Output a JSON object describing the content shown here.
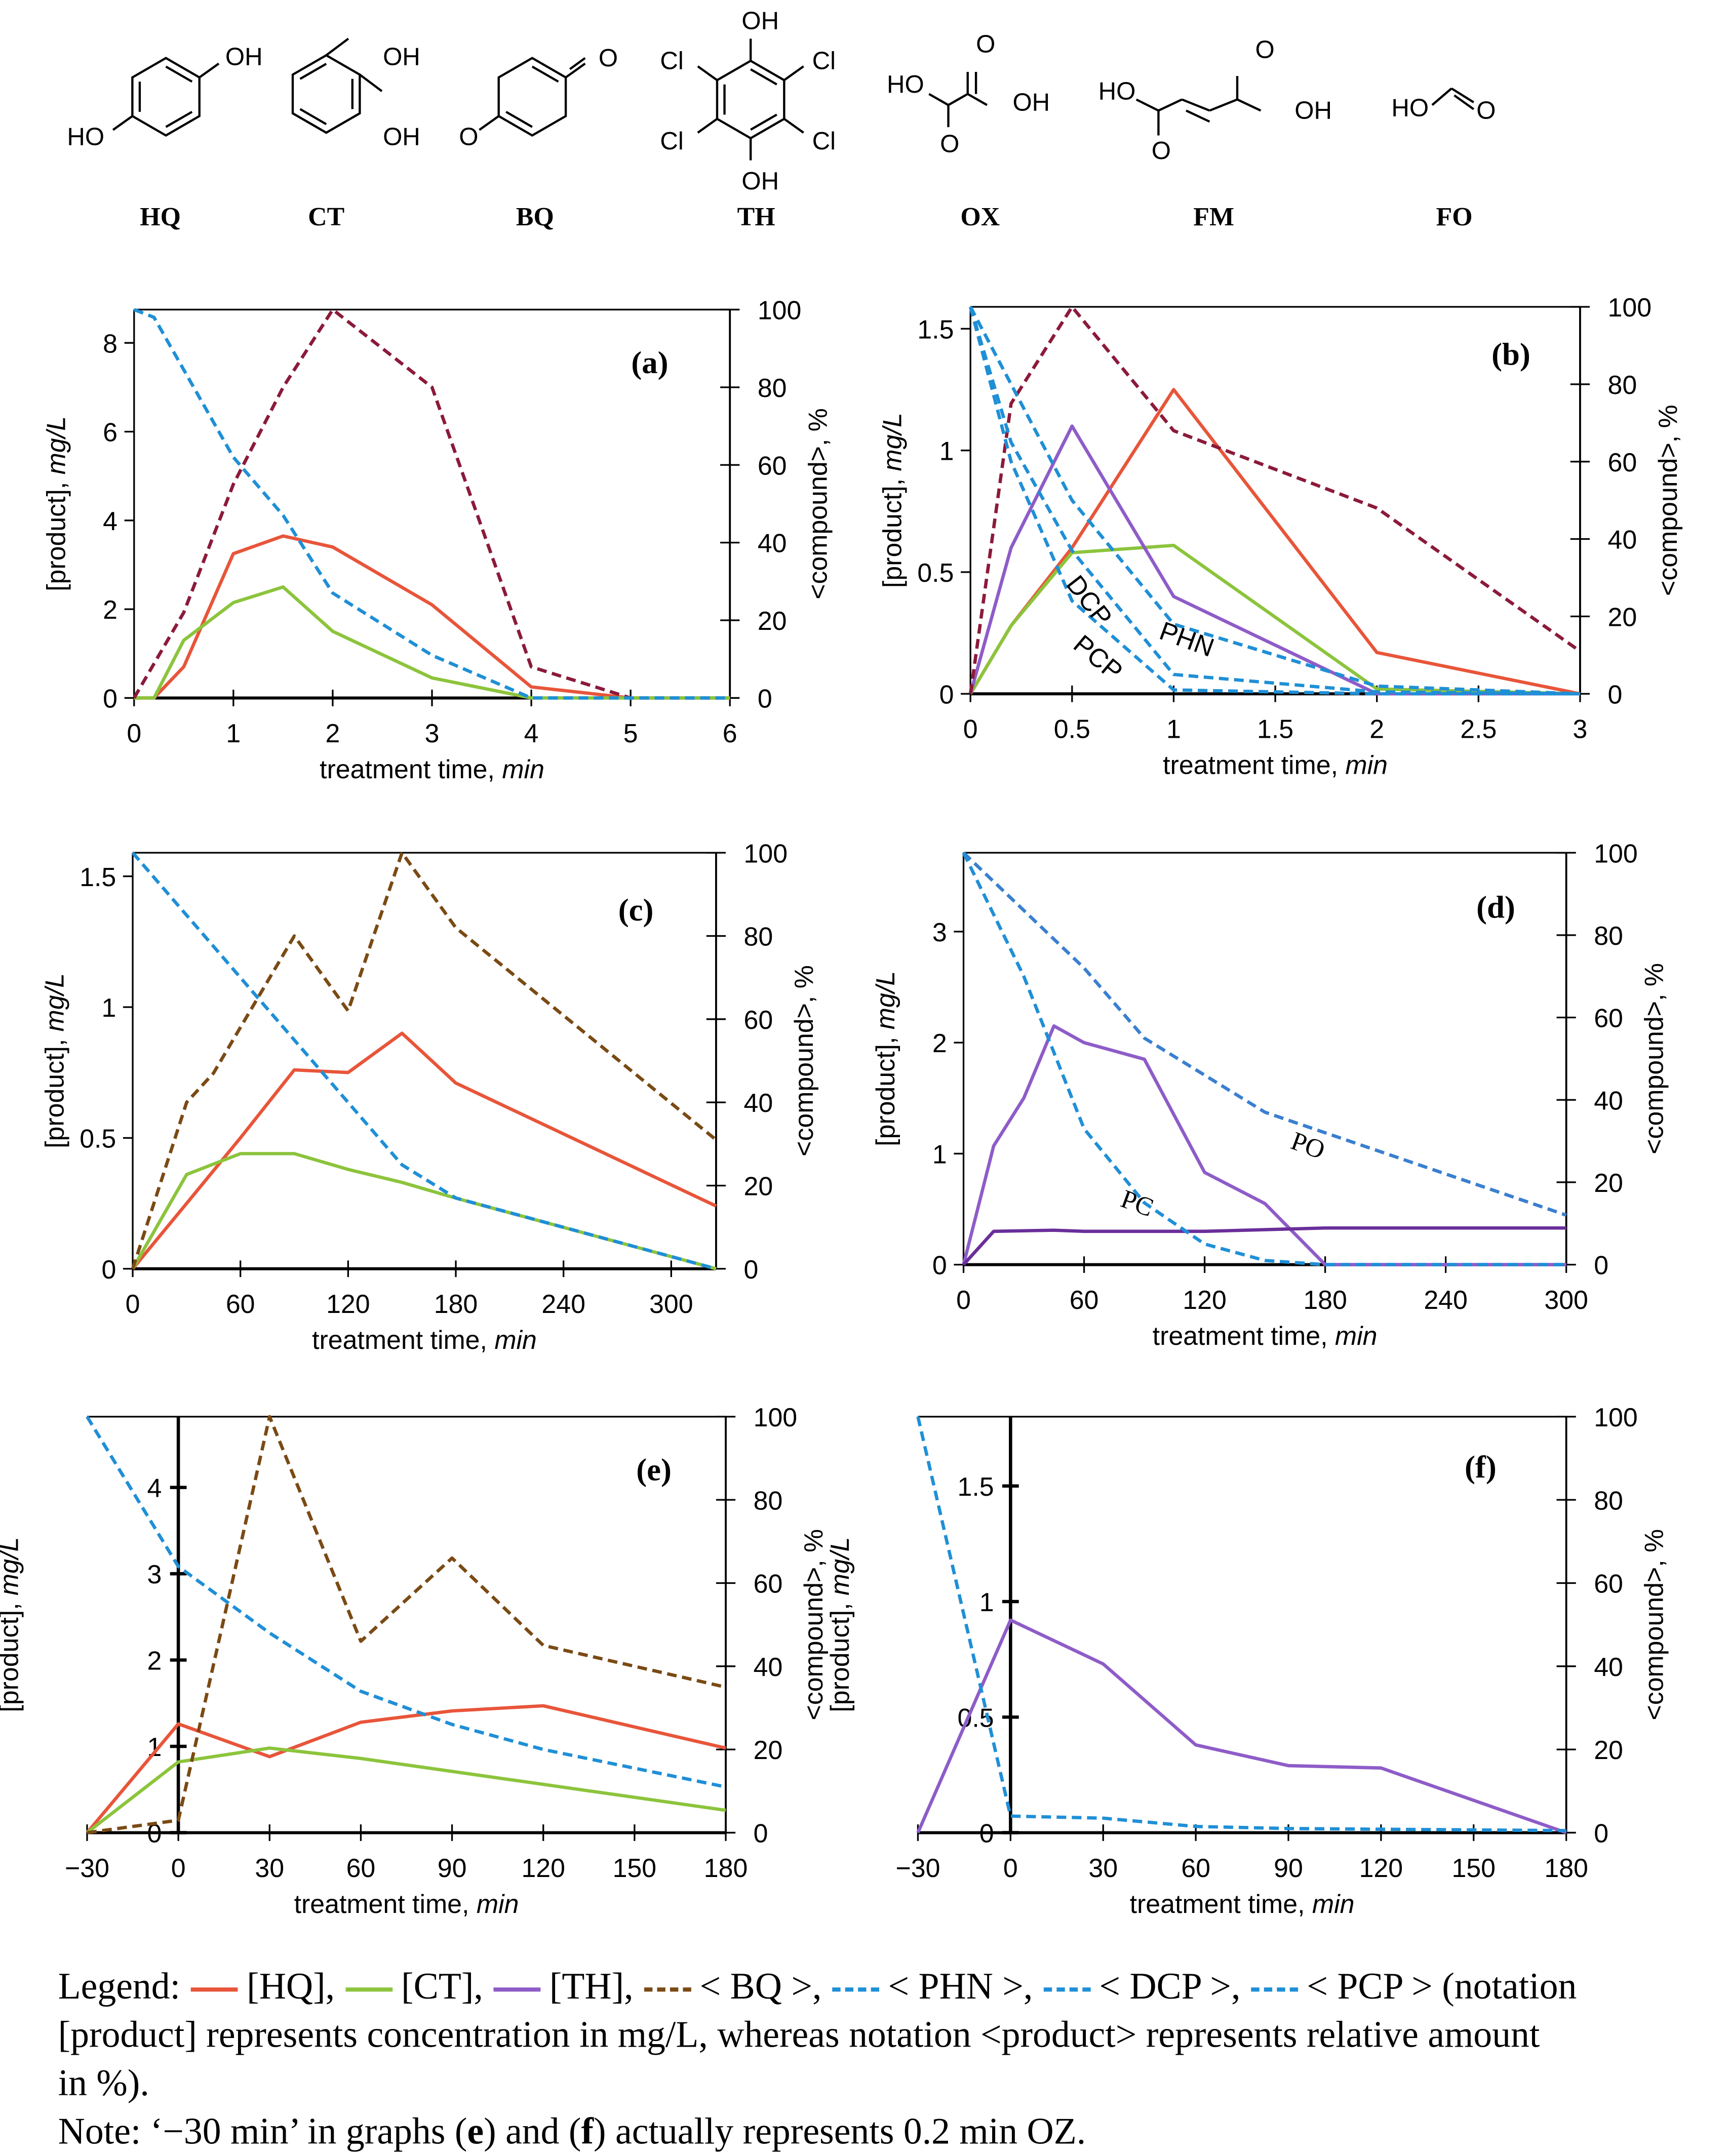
{
  "structures": [
    {
      "id": "HQ",
      "label": "HQ",
      "atoms": [
        "OH",
        "HO"
      ]
    },
    {
      "id": "CT",
      "label": "CT",
      "atoms": [
        "OH",
        "OH"
      ]
    },
    {
      "id": "BQ",
      "label": "BQ",
      "atoms": [
        "O",
        "O"
      ]
    },
    {
      "id": "TH",
      "label": "TH",
      "atoms": [
        "OH",
        "Cl",
        "Cl",
        "Cl",
        "Cl",
        "OH"
      ]
    },
    {
      "id": "OX",
      "label": "OX",
      "atoms": [
        "HO",
        "O",
        "OH",
        "O"
      ]
    },
    {
      "id": "FM",
      "label": "FM",
      "atoms": [
        "HO",
        "O",
        "OH",
        "O"
      ]
    },
    {
      "id": "FO",
      "label": "FO",
      "atoms": [
        "HO",
        "O"
      ]
    }
  ],
  "colors": {
    "HQ": "#e8553a",
    "CT": "#8cc43c",
    "TH": "#8e5cc8",
    "TH2": "#6a2e9a",
    "BQ1": "#8b1a3a",
    "BQ2": "#7a4a14",
    "PHN": "#1f8fd6",
    "DCP": "#1f8fd6",
    "PCP": "#1f8fd6",
    "PO": "#3a7fd0",
    "PC": "#1f8fd6"
  },
  "chart_data": [
    {
      "type": "line",
      "panel": "(a)",
      "xlabel": "treatment time, ",
      "xlabel_unit": "min",
      "ylabel": "[product], ",
      "ylabel_unit": "mg/L",
      "y2label": "<compound>, %",
      "xlim": [
        0,
        6
      ],
      "ylim": [
        0,
        8.75
      ],
      "y2lim": [
        0,
        100
      ],
      "xticks": [
        0,
        1,
        2,
        3,
        4,
        5,
        6
      ],
      "yticks": [
        0,
        2,
        4,
        6,
        8
      ],
      "y2ticks": [
        0,
        20,
        40,
        60,
        80,
        100
      ],
      "series": [
        {
          "key": "HQ",
          "axis": "left",
          "dash": false,
          "x": [
            0,
            0.2,
            0.5,
            1,
            1.5,
            2,
            3,
            4,
            5,
            6
          ],
          "y": [
            0,
            0,
            0.7,
            3.25,
            3.65,
            3.4,
            2.1,
            0.25,
            0,
            0
          ]
        },
        {
          "key": "CT",
          "axis": "left",
          "dash": false,
          "x": [
            0,
            0.2,
            0.5,
            1,
            1.5,
            2,
            3,
            4,
            5,
            6
          ],
          "y": [
            0,
            0,
            1.3,
            2.15,
            2.5,
            1.5,
            0.45,
            0,
            0,
            0
          ]
        },
        {
          "key": "BQ1",
          "axis": "right",
          "dash": true,
          "x": [
            0,
            0.5,
            1,
            1.5,
            2,
            3,
            4,
            5
          ],
          "y": [
            0,
            22,
            55,
            80,
            100,
            80,
            8,
            0
          ]
        },
        {
          "key": "PHN",
          "axis": "right",
          "dash": true,
          "x": [
            0,
            0.2,
            1,
            1.5,
            2,
            3,
            4,
            5,
            6
          ],
          "y": [
            100,
            98,
            62,
            47,
            27,
            11,
            0,
            0,
            0
          ]
        }
      ],
      "annotations": []
    },
    {
      "type": "line",
      "panel": "(b)",
      "xlabel": "treatment time, ",
      "xlabel_unit": "min",
      "ylabel": "[product], ",
      "ylabel_unit": "mg/L",
      "y2label": "<compound>, %",
      "xlim": [
        0,
        3
      ],
      "ylim": [
        0,
        1.59
      ],
      "y2lim": [
        0,
        100
      ],
      "xticks": [
        0,
        0.5,
        1,
        1.5,
        2,
        2.5,
        3
      ],
      "yticks": [
        0,
        0.5,
        1,
        1.5
      ],
      "y2ticks": [
        0,
        20,
        40,
        60,
        80,
        100
      ],
      "series": [
        {
          "key": "HQ",
          "axis": "left",
          "dash": false,
          "x": [
            0,
            0.2,
            0.5,
            1,
            2,
            3
          ],
          "y": [
            0,
            0.28,
            0.6,
            1.25,
            0.17,
            0
          ]
        },
        {
          "key": "CT",
          "axis": "left",
          "dash": false,
          "x": [
            0,
            0.2,
            0.5,
            1,
            2,
            3
          ],
          "y": [
            0,
            0.28,
            0.58,
            0.61,
            0.02,
            0
          ]
        },
        {
          "key": "TH",
          "axis": "left",
          "dash": false,
          "x": [
            0,
            0.2,
            0.5,
            1,
            2,
            3
          ],
          "y": [
            0,
            0.6,
            1.1,
            0.4,
            0,
            0
          ]
        },
        {
          "key": "BQ1",
          "axis": "right",
          "dash": true,
          "x": [
            0,
            0.2,
            0.5,
            1,
            2,
            3
          ],
          "y": [
            0,
            75,
            100,
            68,
            48,
            11
          ]
        },
        {
          "key": "PHN",
          "axis": "right",
          "dash": true,
          "x": [
            0,
            0.5,
            1,
            2,
            3
          ],
          "y": [
            100,
            50,
            18,
            2,
            0
          ]
        },
        {
          "key": "DCP",
          "axis": "right",
          "dash": true,
          "x": [
            0,
            0.2,
            0.5,
            1,
            2,
            3
          ],
          "y": [
            100,
            65,
            37,
            5,
            0.5,
            0
          ]
        },
        {
          "key": "PCP",
          "axis": "right",
          "dash": true,
          "x": [
            0,
            0.2,
            0.5,
            1,
            2,
            3
          ],
          "y": [
            100,
            60,
            24,
            1,
            0,
            0
          ]
        }
      ],
      "annotations": [
        "DCP",
        "PHN",
        "PCP"
      ]
    },
    {
      "type": "line",
      "panel": "(c)",
      "xlabel": "treatment time, ",
      "xlabel_unit": "min",
      "ylabel": "[product], ",
      "ylabel_unit": "mg/L",
      "y2label": "<compound>, %",
      "xlim": [
        0,
        325
      ],
      "ylim": [
        0,
        1.59
      ],
      "y2lim": [
        0,
        100
      ],
      "xticks": [
        0,
        60,
        120,
        180,
        240,
        300
      ],
      "yticks": [
        0,
        0.5,
        1,
        1.5
      ],
      "y2ticks": [
        0,
        20,
        40,
        60,
        80,
        100
      ],
      "series": [
        {
          "key": "HQ",
          "axis": "left",
          "dash": false,
          "x": [
            0,
            30,
            60,
            90,
            120,
            150,
            180,
            325
          ],
          "y": [
            0,
            0.25,
            0.5,
            0.76,
            0.75,
            0.9,
            0.71,
            0.24
          ]
        },
        {
          "key": "CT",
          "axis": "left",
          "dash": false,
          "x": [
            0,
            30,
            60,
            90,
            120,
            150,
            180,
            325
          ],
          "y": [
            0,
            0.36,
            0.44,
            0.44,
            0.38,
            0.33,
            0.27,
            0
          ]
        },
        {
          "key": "BQ2",
          "axis": "right",
          "dash": true,
          "x": [
            0,
            30,
            45,
            90,
            120,
            150,
            180,
            325
          ],
          "y": [
            0,
            40,
            47,
            80,
            62,
            100,
            82,
            31
          ]
        },
        {
          "key": "PHN",
          "axis": "right",
          "dash": true,
          "x": [
            0,
            60,
            120,
            150,
            180,
            325
          ],
          "y": [
            100,
            70,
            40,
            25,
            17,
            0
          ]
        }
      ],
      "annotations": []
    },
    {
      "type": "line",
      "panel": "(d)",
      "xlabel": "treatment time, ",
      "xlabel_unit": "min",
      "ylabel": "[product], ",
      "ylabel_unit": "mg/L",
      "y2label": "<compound>, %",
      "xlim": [
        0,
        300
      ],
      "ylim": [
        0,
        3.71
      ],
      "y2lim": [
        0,
        100
      ],
      "xticks": [
        0,
        60,
        120,
        180,
        240,
        300
      ],
      "yticks": [
        0,
        1,
        2,
        3
      ],
      "y2ticks": [
        0,
        20,
        40,
        60,
        80,
        100
      ],
      "series": [
        {
          "key": "TH",
          "axis": "left",
          "dash": false,
          "x": [
            0,
            15,
            30,
            45,
            60,
            90,
            120,
            150,
            180,
            300
          ],
          "y": [
            0,
            1.07,
            1.5,
            2.15,
            2.0,
            1.85,
            0.83,
            0.55,
            0,
            0
          ]
        },
        {
          "key": "TH2",
          "axis": "left",
          "dash": false,
          "x": [
            0,
            15,
            45,
            60,
            120,
            180,
            300
          ],
          "y": [
            0,
            0.3,
            0.31,
            0.3,
            0.3,
            0.33,
            0.33
          ]
        },
        {
          "key": "PO",
          "axis": "right",
          "dash": true,
          "x": [
            0,
            60,
            90,
            150,
            300
          ],
          "y": [
            100,
            72,
            55,
            37,
            12
          ]
        },
        {
          "key": "PC",
          "axis": "right",
          "dash": true,
          "x": [
            0,
            30,
            60,
            90,
            120,
            150,
            180,
            300
          ],
          "y": [
            100,
            70,
            33,
            15,
            5,
            1,
            0,
            0
          ]
        }
      ],
      "annotations": [
        "PO",
        "PC"
      ]
    },
    {
      "type": "line",
      "panel": "(e)",
      "xlabel": "treatment time, ",
      "xlabel_unit": "min",
      "ylabel": "[product], ",
      "ylabel_unit": "mg/L",
      "y2label": "<compound>, %",
      "xlim": [
        -30,
        180
      ],
      "ylim": [
        0,
        4.82
      ],
      "y2lim": [
        0,
        100
      ],
      "xticks": [
        -30,
        0,
        30,
        60,
        90,
        120,
        150,
        180
      ],
      "xtick_labels": [
        "−30",
        "0",
        "30",
        "60",
        "90",
        "120",
        "150",
        "180"
      ],
      "yticks": [
        0,
        1,
        2,
        3,
        4
      ],
      "y2ticks": [
        0,
        20,
        40,
        60,
        80,
        100
      ],
      "series": [
        {
          "key": "HQ",
          "axis": "left",
          "dash": false,
          "x": [
            -30,
            0,
            30,
            60,
            90,
            120,
            180
          ],
          "y": [
            0,
            1.26,
            0.88,
            1.28,
            1.41,
            1.47,
            0.98
          ]
        },
        {
          "key": "CT",
          "axis": "left",
          "dash": false,
          "x": [
            -30,
            0,
            30,
            60,
            180
          ],
          "y": [
            0,
            0.82,
            0.98,
            0.86,
            0.26
          ]
        },
        {
          "key": "BQ2",
          "axis": "right",
          "dash": true,
          "x": [
            -30,
            0,
            30,
            60,
            90,
            120,
            180
          ],
          "y": [
            0,
            3,
            100,
            46,
            66,
            45,
            35
          ]
        },
        {
          "key": "PHN",
          "axis": "right",
          "dash": true,
          "x": [
            -30,
            0,
            30,
            60,
            90,
            120,
            180
          ],
          "y": [
            100,
            64,
            48,
            34,
            26,
            20,
            11
          ]
        }
      ],
      "annotations": []
    },
    {
      "type": "line",
      "panel": "(f)",
      "xlabel": "treatment time, ",
      "xlabel_unit": "min",
      "ylabel": "[product], ",
      "ylabel_unit": "mg/L",
      "y2label": "<compound>, %",
      "xlim": [
        -30,
        180
      ],
      "ylim": [
        0,
        1.8
      ],
      "y2lim": [
        0,
        100
      ],
      "xticks": [
        -30,
        0,
        30,
        60,
        90,
        120,
        150,
        180
      ],
      "xtick_labels": [
        "−30",
        "0",
        "30",
        "60",
        "90",
        "120",
        "150",
        "180"
      ],
      "yticks": [
        0,
        0.5,
        1,
        1.5
      ],
      "y2ticks": [
        0,
        20,
        40,
        60,
        80,
        100
      ],
      "series": [
        {
          "key": "TH",
          "axis": "left",
          "dash": false,
          "x": [
            -30,
            0,
            30,
            60,
            90,
            120,
            180
          ],
          "y": [
            0,
            0.92,
            0.73,
            0.38,
            0.29,
            0.28,
            0
          ]
        },
        {
          "key": "PCP",
          "axis": "right",
          "dash": true,
          "x": [
            -30,
            0,
            30,
            60,
            90,
            180
          ],
          "y": [
            100,
            4,
            3.5,
            1.5,
            1,
            0.5
          ]
        }
      ],
      "annotations": []
    }
  ],
  "legend": {
    "prefix": "Legend:",
    "entries": [
      {
        "key": "HQ",
        "text": "[HQ],",
        "dash": false
      },
      {
        "key": "CT",
        "text": "[CT],",
        "dash": false
      },
      {
        "key": "TH",
        "text": "[TH],",
        "dash": false
      },
      {
        "key": "BQ2",
        "text": "< BQ >,",
        "dash": true
      },
      {
        "key": "PHN",
        "text": "< PHN >,",
        "dash": true
      },
      {
        "key": "DCP",
        "text": "< DCP >,",
        "dash": true
      },
      {
        "key": "PCP",
        "text": "< PCP > (notation",
        "dash": true
      }
    ],
    "line2": "[product] represents concentration in mg/L, whereas notation <product> represents relative amount",
    "line3": "in %).",
    "note_a": "Note: ‘−30 min’ in graphs (",
    "note_e": "e",
    "note_b": ") and (",
    "note_f": "f",
    "note_c": ") actually represents 0.2 min OZ."
  }
}
